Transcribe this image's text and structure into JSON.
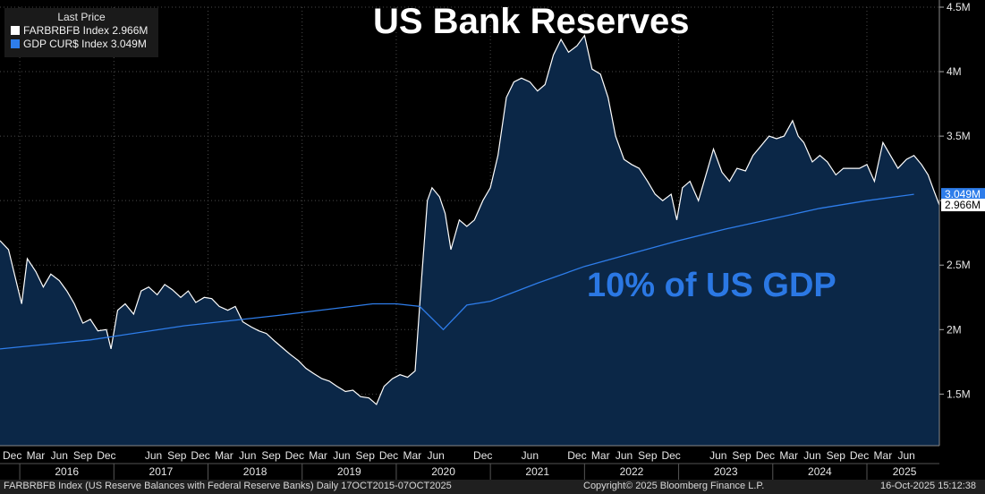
{
  "chart_data": {
    "type": "area",
    "title": "US Bank Reserves",
    "annotation": "10% of US GDP",
    "ylim": [
      1100000,
      4500000
    ],
    "y_ticks": [
      {
        "value": 1500000,
        "label": "1.5M"
      },
      {
        "value": 2000000,
        "label": "2M"
      },
      {
        "value": 2500000,
        "label": "2.5M"
      },
      {
        "value": 3000000,
        "label": "3M"
      },
      {
        "value": 3500000,
        "label": "3.5M"
      },
      {
        "value": 4000000,
        "label": "4M"
      },
      {
        "value": 4500000,
        "label": "4.5M"
      }
    ],
    "x_range": [
      2015.79,
      2025.77
    ],
    "month_ticks": [
      {
        "x": 2015.92,
        "label": "Dec"
      },
      {
        "x": 2016.17,
        "label": "Mar"
      },
      {
        "x": 2016.42,
        "label": "Jun"
      },
      {
        "x": 2016.67,
        "label": "Sep"
      },
      {
        "x": 2016.92,
        "label": "Dec"
      },
      {
        "x": 2017.42,
        "label": "Jun"
      },
      {
        "x": 2017.67,
        "label": "Sep"
      },
      {
        "x": 2017.92,
        "label": "Dec"
      },
      {
        "x": 2018.17,
        "label": "Mar"
      },
      {
        "x": 2018.42,
        "label": "Jun"
      },
      {
        "x": 2018.67,
        "label": "Sep"
      },
      {
        "x": 2018.92,
        "label": "Dec"
      },
      {
        "x": 2019.17,
        "label": "Mar"
      },
      {
        "x": 2019.42,
        "label": "Jun"
      },
      {
        "x": 2019.67,
        "label": "Sep"
      },
      {
        "x": 2019.92,
        "label": "Dec"
      },
      {
        "x": 2020.17,
        "label": "Mar"
      },
      {
        "x": 2020.42,
        "label": "Jun"
      },
      {
        "x": 2020.92,
        "label": "Dec"
      },
      {
        "x": 2021.42,
        "label": "Jun"
      },
      {
        "x": 2021.92,
        "label": "Dec"
      },
      {
        "x": 2022.17,
        "label": "Mar"
      },
      {
        "x": 2022.42,
        "label": "Jun"
      },
      {
        "x": 2022.67,
        "label": "Sep"
      },
      {
        "x": 2022.92,
        "label": "Dec"
      },
      {
        "x": 2023.42,
        "label": "Jun"
      },
      {
        "x": 2023.67,
        "label": "Sep"
      },
      {
        "x": 2023.92,
        "label": "Dec"
      },
      {
        "x": 2024.17,
        "label": "Mar"
      },
      {
        "x": 2024.42,
        "label": "Jun"
      },
      {
        "x": 2024.67,
        "label": "Sep"
      },
      {
        "x": 2024.92,
        "label": "Dec"
      },
      {
        "x": 2025.17,
        "label": "Mar"
      },
      {
        "x": 2025.42,
        "label": "Jun"
      }
    ],
    "year_labels": [
      {
        "x": 2016.5,
        "label": "2016"
      },
      {
        "x": 2017.5,
        "label": "2017"
      },
      {
        "x": 2018.5,
        "label": "2018"
      },
      {
        "x": 2019.5,
        "label": "2019"
      },
      {
        "x": 2020.5,
        "label": "2020"
      },
      {
        "x": 2021.5,
        "label": "2021"
      },
      {
        "x": 2022.5,
        "label": "2022"
      },
      {
        "x": 2023.5,
        "label": "2023"
      },
      {
        "x": 2024.5,
        "label": "2024"
      },
      {
        "x": 2025.4,
        "label": "2025"
      }
    ],
    "series": [
      {
        "name": "FARBRBFB Index",
        "color": "#ffffff",
        "fill": "#0b2747",
        "last_label": "2.966M",
        "points": [
          [
            2015.79,
            2690000
          ],
          [
            2015.88,
            2620000
          ],
          [
            2015.96,
            2380000
          ],
          [
            2016.02,
            2200000
          ],
          [
            2016.08,
            2550000
          ],
          [
            2016.17,
            2450000
          ],
          [
            2016.25,
            2330000
          ],
          [
            2016.33,
            2430000
          ],
          [
            2016.42,
            2380000
          ],
          [
            2016.5,
            2300000
          ],
          [
            2016.58,
            2200000
          ],
          [
            2016.67,
            2050000
          ],
          [
            2016.75,
            2080000
          ],
          [
            2016.83,
            1990000
          ],
          [
            2016.92,
            2000000
          ],
          [
            2016.97,
            1850000
          ],
          [
            2017.04,
            2150000
          ],
          [
            2017.12,
            2200000
          ],
          [
            2017.21,
            2120000
          ],
          [
            2017.29,
            2300000
          ],
          [
            2017.37,
            2330000
          ],
          [
            2017.46,
            2270000
          ],
          [
            2017.54,
            2350000
          ],
          [
            2017.62,
            2310000
          ],
          [
            2017.71,
            2250000
          ],
          [
            2017.79,
            2300000
          ],
          [
            2017.87,
            2210000
          ],
          [
            2017.96,
            2250000
          ],
          [
            2018.04,
            2240000
          ],
          [
            2018.12,
            2180000
          ],
          [
            2018.21,
            2150000
          ],
          [
            2018.29,
            2180000
          ],
          [
            2018.37,
            2060000
          ],
          [
            2018.46,
            2020000
          ],
          [
            2018.54,
            1990000
          ],
          [
            2018.62,
            1970000
          ],
          [
            2018.71,
            1910000
          ],
          [
            2018.79,
            1860000
          ],
          [
            2018.87,
            1810000
          ],
          [
            2018.96,
            1760000
          ],
          [
            2019.04,
            1700000
          ],
          [
            2019.12,
            1660000
          ],
          [
            2019.21,
            1620000
          ],
          [
            2019.29,
            1600000
          ],
          [
            2019.37,
            1560000
          ],
          [
            2019.46,
            1520000
          ],
          [
            2019.54,
            1530000
          ],
          [
            2019.62,
            1480000
          ],
          [
            2019.71,
            1470000
          ],
          [
            2019.79,
            1420000
          ],
          [
            2019.87,
            1560000
          ],
          [
            2019.96,
            1620000
          ],
          [
            2020.04,
            1650000
          ],
          [
            2020.12,
            1630000
          ],
          [
            2020.2,
            1680000
          ],
          [
            2020.27,
            2400000
          ],
          [
            2020.33,
            3000000
          ],
          [
            2020.38,
            3100000
          ],
          [
            2020.46,
            3030000
          ],
          [
            2020.52,
            2900000
          ],
          [
            2020.58,
            2620000
          ],
          [
            2020.67,
            2850000
          ],
          [
            2020.75,
            2800000
          ],
          [
            2020.83,
            2850000
          ],
          [
            2020.92,
            3000000
          ],
          [
            2021.0,
            3100000
          ],
          [
            2021.08,
            3350000
          ],
          [
            2021.17,
            3800000
          ],
          [
            2021.25,
            3920000
          ],
          [
            2021.33,
            3950000
          ],
          [
            2021.42,
            3920000
          ],
          [
            2021.5,
            3850000
          ],
          [
            2021.58,
            3900000
          ],
          [
            2021.67,
            4130000
          ],
          [
            2021.75,
            4250000
          ],
          [
            2021.83,
            4150000
          ],
          [
            2021.92,
            4200000
          ],
          [
            2022.0,
            4280000
          ],
          [
            2022.08,
            4020000
          ],
          [
            2022.17,
            3980000
          ],
          [
            2022.25,
            3800000
          ],
          [
            2022.33,
            3500000
          ],
          [
            2022.42,
            3320000
          ],
          [
            2022.5,
            3280000
          ],
          [
            2022.58,
            3250000
          ],
          [
            2022.67,
            3150000
          ],
          [
            2022.75,
            3050000
          ],
          [
            2022.83,
            3000000
          ],
          [
            2022.92,
            3050000
          ],
          [
            2022.98,
            2850000
          ],
          [
            2023.04,
            3100000
          ],
          [
            2023.12,
            3150000
          ],
          [
            2023.21,
            3000000
          ],
          [
            2023.29,
            3200000
          ],
          [
            2023.37,
            3400000
          ],
          [
            2023.46,
            3220000
          ],
          [
            2023.54,
            3150000
          ],
          [
            2023.62,
            3250000
          ],
          [
            2023.71,
            3230000
          ],
          [
            2023.79,
            3350000
          ],
          [
            2023.87,
            3420000
          ],
          [
            2023.96,
            3500000
          ],
          [
            2024.04,
            3480000
          ],
          [
            2024.12,
            3500000
          ],
          [
            2024.21,
            3620000
          ],
          [
            2024.27,
            3500000
          ],
          [
            2024.33,
            3450000
          ],
          [
            2024.42,
            3300000
          ],
          [
            2024.5,
            3350000
          ],
          [
            2024.58,
            3300000
          ],
          [
            2024.67,
            3200000
          ],
          [
            2024.75,
            3250000
          ],
          [
            2024.83,
            3250000
          ],
          [
            2024.92,
            3250000
          ],
          [
            2025.0,
            3280000
          ],
          [
            2025.08,
            3150000
          ],
          [
            2025.17,
            3450000
          ],
          [
            2025.25,
            3350000
          ],
          [
            2025.33,
            3250000
          ],
          [
            2025.42,
            3320000
          ],
          [
            2025.5,
            3350000
          ],
          [
            2025.58,
            3280000
          ],
          [
            2025.65,
            3200000
          ],
          [
            2025.71,
            3080000
          ],
          [
            2025.77,
            2966000
          ]
        ]
      },
      {
        "name": "GDP CUR$ Index",
        "color": "#2e7dea",
        "last_label": "3.049M",
        "points": [
          [
            2015.79,
            1850000
          ],
          [
            2016.75,
            1920000
          ],
          [
            2017.75,
            2030000
          ],
          [
            2018.75,
            2110000
          ],
          [
            2019.75,
            2200000
          ],
          [
            2020.0,
            2200000
          ],
          [
            2020.25,
            2180000
          ],
          [
            2020.5,
            2000000
          ],
          [
            2020.75,
            2190000
          ],
          [
            2021.0,
            2220000
          ],
          [
            2021.5,
            2360000
          ],
          [
            2022.0,
            2490000
          ],
          [
            2022.5,
            2590000
          ],
          [
            2023.0,
            2690000
          ],
          [
            2023.5,
            2780000
          ],
          [
            2024.0,
            2860000
          ],
          [
            2024.5,
            2940000
          ],
          [
            2025.0,
            3000000
          ],
          [
            2025.5,
            3049000
          ]
        ]
      }
    ]
  },
  "legend": {
    "header": "Last Price",
    "items": [
      {
        "text": "FARBRBFB Index 2.966M",
        "color": "#ffffff"
      },
      {
        "text": "GDP CUR$ Index 3.049M",
        "color": "#2e7dea"
      }
    ]
  },
  "footer": {
    "left": "FARBRBFB Index (US Reserve Balances with Federal Reserve Banks) Daily 17OCT2015-07OCT2025",
    "center": "Copyright© 2025 Bloomberg Finance L.P.",
    "right": "16-Oct-2025 15:12:38"
  }
}
